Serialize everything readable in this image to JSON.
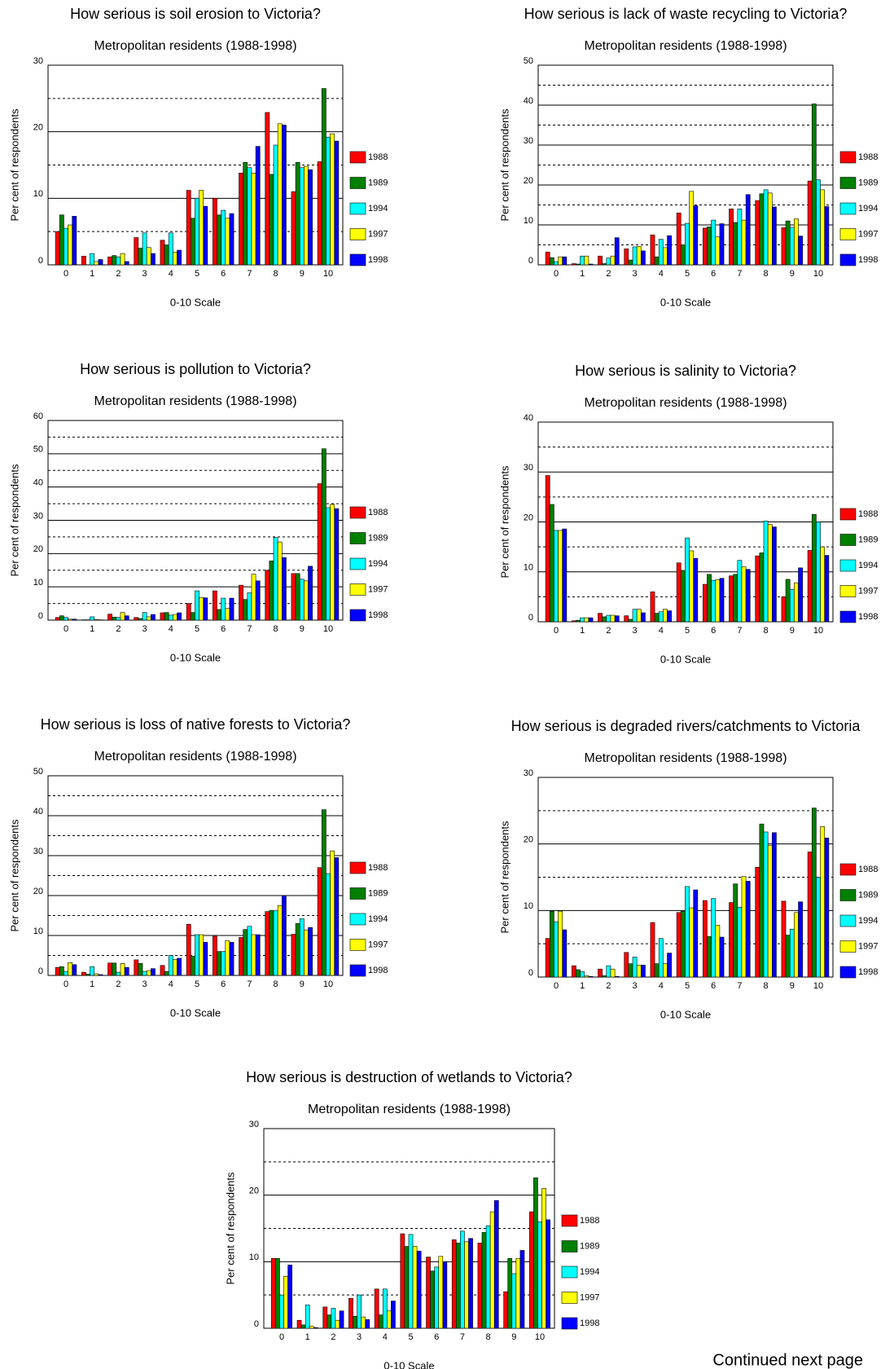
{
  "footer_note": "Continued next page",
  "chart_data": [
    {
      "type": "bar",
      "title": "How serious is soil erosion to Victoria?",
      "subtitle": "Metropolitan residents (1988-1998)",
      "ylabel": "Per cent of respondents",
      "xlabel": "0-10 Scale",
      "categories": [
        "0",
        "1",
        "2",
        "3",
        "4",
        "5",
        "6",
        "7",
        "8",
        "9",
        "10"
      ],
      "series": [
        {
          "name": "1988",
          "color": "#ff0000",
          "values": [
            5,
            1.3,
            1.2,
            4.1,
            3.7,
            11.2,
            10,
            13.8,
            22.9,
            11,
            15.5
          ]
        },
        {
          "name": "1989",
          "color": "#008000",
          "values": [
            7.5,
            0,
            1.4,
            2.5,
            3,
            7,
            7.5,
            15.4,
            13.6,
            15.4,
            26.5
          ]
        },
        {
          "name": "1994",
          "color": "#00ffff",
          "values": [
            5.5,
            1.7,
            1.2,
            4.8,
            4.8,
            10,
            8.2,
            14.6,
            18,
            14.6,
            19.2
          ]
        },
        {
          "name": "1997",
          "color": "#ffff00",
          "values": [
            6,
            0.5,
            1.7,
            2.6,
            1.9,
            11.2,
            7,
            13.8,
            21.2,
            14.8,
            19.7
          ]
        },
        {
          "name": "1998",
          "color": "#0000ff",
          "values": [
            7.3,
            0.8,
            0.5,
            1.7,
            2.2,
            8.8,
            7.7,
            17.8,
            21,
            14.3,
            18.6
          ]
        }
      ],
      "ylim": [
        0,
        30
      ],
      "yticks": [
        0,
        10,
        20,
        30
      ],
      "minor_gridlines": [
        5,
        15,
        25
      ],
      "grid": true,
      "legend": "right"
    },
    {
      "type": "bar",
      "title": "How serious is lack of waste recycling to Victoria?",
      "subtitle": "Metropolitan residents (1988-1998)",
      "ylabel": "Per cent of respondents",
      "xlabel": "0-10 Scale",
      "categories": [
        "0",
        "1",
        "2",
        "3",
        "4",
        "5",
        "6",
        "7",
        "8",
        "9",
        "10"
      ],
      "series": [
        {
          "name": "1988",
          "color": "#ff0000",
          "values": [
            3.2,
            0.3,
            2.2,
            4,
            7.5,
            13,
            9.2,
            14,
            16.1,
            9.3,
            21
          ]
        },
        {
          "name": "1989",
          "color": "#008000",
          "values": [
            1.8,
            0.2,
            0.3,
            1.2,
            2,
            5,
            9.5,
            10.6,
            17.8,
            11,
            40.3
          ]
        },
        {
          "name": "1994",
          "color": "#00ffff",
          "values": [
            0.8,
            2.2,
            1.7,
            4.5,
            6.4,
            10.4,
            11.2,
            14,
            18.8,
            9.4,
            21.3
          ]
        },
        {
          "name": "1997",
          "color": "#ffff00",
          "values": [
            2,
            2.2,
            2.2,
            4.6,
            4.3,
            18.4,
            7,
            11.2,
            18,
            11.5,
            18.8
          ]
        },
        {
          "name": "1998",
          "color": "#0000ff",
          "values": [
            2,
            0.2,
            6.8,
            3.5,
            7.3,
            14.8,
            10.3,
            17.6,
            14.5,
            7.2,
            14.6
          ]
        }
      ],
      "ylim": [
        0,
        50
      ],
      "yticks": [
        0,
        10,
        20,
        30,
        40,
        50
      ],
      "minor_gridlines": [
        5,
        15,
        25,
        35,
        45
      ],
      "grid": true,
      "legend": "right"
    },
    {
      "type": "bar",
      "title": "How serious is pollution to Victoria?",
      "subtitle": "Metropolitan residents (1988-1998)",
      "ylabel": "Per cent of respondents",
      "xlabel": "0-10 Scale",
      "categories": [
        "0",
        "1",
        "2",
        "3",
        "4",
        "5",
        "6",
        "7",
        "8",
        "9",
        "10"
      ],
      "series": [
        {
          "name": "1988",
          "color": "#ff0000",
          "values": [
            0.8,
            0.1,
            1.8,
            0.8,
            2.2,
            5,
            8.8,
            10.5,
            15,
            14,
            41
          ]
        },
        {
          "name": "1989",
          "color": "#008000",
          "values": [
            1.3,
            0.1,
            0.9,
            0.5,
            2.3,
            2.3,
            3.2,
            6.2,
            17.8,
            14,
            51.5
          ]
        },
        {
          "name": "1994",
          "color": "#00ffff",
          "values": [
            0.8,
            1,
            0.8,
            2.3,
            1.5,
            8.8,
            6.6,
            8.2,
            24.8,
            12.3,
            33.8
          ]
        },
        {
          "name": "1997",
          "color": "#ffff00",
          "values": [
            0.3,
            0.2,
            2.3,
            1,
            1.7,
            6.8,
            3.5,
            13.8,
            23.5,
            11.8,
            34.8
          ]
        },
        {
          "name": "1998",
          "color": "#0000ff",
          "values": [
            0.3,
            0.1,
            1.3,
            1.7,
            2.2,
            6.7,
            6.6,
            11.8,
            18.8,
            16.2,
            33.5
          ]
        }
      ],
      "ylim": [
        0,
        60
      ],
      "yticks": [
        0,
        10,
        20,
        30,
        40,
        50,
        60
      ],
      "minor_gridlines": [
        5,
        15,
        25,
        35,
        45,
        55
      ],
      "grid": true,
      "legend": "right"
    },
    {
      "type": "bar",
      "title": "How serious is salinity to Victoria?",
      "subtitle": "Metropolitan residents (1988-1998)",
      "ylabel": "Per cent of respondents",
      "xlabel": "0-10 Scale",
      "categories": [
        "0",
        "1",
        "2",
        "3",
        "4",
        "5",
        "6",
        "7",
        "8",
        "9",
        "10"
      ],
      "series": [
        {
          "name": "1988",
          "color": "#ff0000",
          "values": [
            29.3,
            0.2,
            1.7,
            1.2,
            6,
            11.8,
            7.5,
            9.2,
            13.2,
            5,
            14.3
          ]
        },
        {
          "name": "1989",
          "color": "#008000",
          "values": [
            23.5,
            0.3,
            1,
            0.5,
            1.7,
            10.3,
            9.5,
            9.5,
            13.8,
            8.5,
            21.5
          ]
        },
        {
          "name": "1994",
          "color": "#00ffff",
          "values": [
            18.3,
            0.8,
            1.3,
            2.5,
            2,
            16.8,
            8.3,
            12.3,
            20.2,
            6.5,
            20
          ]
        },
        {
          "name": "1997",
          "color": "#ffff00",
          "values": [
            18.3,
            0.8,
            1.3,
            2.5,
            2.5,
            14.2,
            8.4,
            11,
            19.5,
            7.8,
            15
          ]
        },
        {
          "name": "1998",
          "color": "#0000ff",
          "values": [
            18.6,
            0.8,
            1.2,
            1.8,
            2.2,
            12.7,
            8.7,
            10.5,
            19,
            10.8,
            13.3
          ]
        }
      ],
      "ylim": [
        0,
        40
      ],
      "yticks": [
        0,
        10,
        20,
        30,
        40
      ],
      "minor_gridlines": [
        5,
        15,
        25,
        35
      ],
      "grid": true,
      "legend": "right"
    },
    {
      "type": "bar",
      "title": "How serious is loss of native forests to Victoria?",
      "subtitle": "Metropolitan residents (1988-1998)",
      "ylabel": "Per cent of respondents",
      "xlabel": "0-10 Scale",
      "categories": [
        "0",
        "1",
        "2",
        "3",
        "4",
        "5",
        "6",
        "7",
        "8",
        "9",
        "10"
      ],
      "series": [
        {
          "name": "1988",
          "color": "#ff0000",
          "values": [
            2,
            0.8,
            3.1,
            3.9,
            2.5,
            12.8,
            9.8,
            9.5,
            16,
            10.3,
            27
          ]
        },
        {
          "name": "1989",
          "color": "#008000",
          "values": [
            2.2,
            0.3,
            3.1,
            3,
            1,
            4.8,
            6,
            11.5,
            16.3,
            13,
            41.5
          ]
        },
        {
          "name": "1994",
          "color": "#00ffff",
          "values": [
            1,
            2.2,
            0.8,
            1,
            5,
            10.2,
            6,
            12.3,
            16.2,
            14.2,
            25.5
          ]
        },
        {
          "name": "1997",
          "color": "#ffff00",
          "values": [
            3.2,
            0.4,
            3,
            1.2,
            4,
            10.2,
            8.7,
            10.2,
            17.5,
            11.4,
            31.2
          ]
        },
        {
          "name": "1998",
          "color": "#0000ff",
          "values": [
            2.7,
            0.2,
            2,
            1.7,
            4.3,
            8.3,
            8.3,
            10.2,
            20,
            12,
            29.5
          ]
        }
      ],
      "ylim": [
        0,
        50
      ],
      "yticks": [
        0,
        10,
        20,
        30,
        40,
        50
      ],
      "minor_gridlines": [
        5,
        15,
        25,
        35,
        45
      ],
      "grid": true,
      "legend": "right"
    },
    {
      "type": "bar",
      "title": "How serious is degraded rivers/catchments to Victoria",
      "subtitle": "Metropolitan residents (1988-1998)",
      "ylabel": "Per cent of respondents",
      "xlabel": "0-10 Scale",
      "categories": [
        "0",
        "1",
        "2",
        "3",
        "4",
        "5",
        "6",
        "7",
        "8",
        "9",
        "10"
      ],
      "series": [
        {
          "name": "1988",
          "color": "#ff0000",
          "values": [
            5.8,
            1.7,
            1.2,
            3.7,
            8.2,
            9.7,
            11.5,
            11.2,
            16.5,
            11.4,
            18.8
          ]
        },
        {
          "name": "1989",
          "color": "#008000",
          "values": [
            9.9,
            1.1,
            0.2,
            2,
            2,
            9.9,
            6.1,
            14,
            23,
            6.3,
            25.4
          ]
        },
        {
          "name": "1994",
          "color": "#00ffff",
          "values": [
            8.3,
            0.8,
            1.7,
            3,
            5.8,
            13.6,
            11.8,
            10.5,
            21.8,
            7.2,
            15
          ]
        },
        {
          "name": "1997",
          "color": "#ffff00",
          "values": [
            9.9,
            0.2,
            1.2,
            1.8,
            2,
            10.4,
            7.8,
            15.1,
            19.8,
            9.7,
            22.6
          ]
        },
        {
          "name": "1998",
          "color": "#0000ff",
          "values": [
            7.1,
            0.1,
            0.1,
            1.8,
            3.6,
            13.1,
            6,
            14.4,
            21.7,
            11.3,
            20.9
          ]
        }
      ],
      "ylim": [
        0,
        30
      ],
      "yticks": [
        0,
        10,
        20,
        30
      ],
      "minor_gridlines": [
        5,
        15,
        25
      ],
      "grid": true,
      "legend": "right"
    },
    {
      "type": "bar",
      "title": "How serious is destruction of wetlands to Victoria?",
      "subtitle": "Metropolitan residents (1988-1998)",
      "ylabel": "Per cent of respondents",
      "xlabel": "0-10 Scale",
      "categories": [
        "0",
        "1",
        "2",
        "3",
        "4",
        "5",
        "6",
        "7",
        "8",
        "9",
        "10"
      ],
      "series": [
        {
          "name": "1988",
          "color": "#ff0000",
          "values": [
            10.5,
            1.2,
            3.2,
            4.5,
            5.9,
            14.2,
            10.7,
            13.3,
            12.8,
            5.5,
            17.5
          ]
        },
        {
          "name": "1989",
          "color": "#008000",
          "values": [
            10.5,
            0.5,
            2,
            1.8,
            2,
            12.3,
            8.6,
            12.8,
            14.4,
            10.5,
            22.6
          ]
        },
        {
          "name": "1994",
          "color": "#00ffff",
          "values": [
            5,
            3.5,
            3,
            5,
            5.9,
            14.1,
            9.2,
            14.6,
            15.4,
            8.2,
            16
          ]
        },
        {
          "name": "1997",
          "color": "#ffff00",
          "values": [
            7.8,
            0.3,
            1.2,
            1.7,
            2.6,
            12.3,
            10.8,
            13,
            17.5,
            10.5,
            21
          ]
        },
        {
          "name": "1998",
          "color": "#0000ff",
          "values": [
            9.5,
            0.1,
            2.6,
            1.3,
            4.1,
            11.6,
            10,
            13.5,
            19.2,
            11.7,
            16.3
          ]
        }
      ],
      "ylim": [
        0,
        30
      ],
      "yticks": [
        0,
        10,
        20,
        30
      ],
      "minor_gridlines": [
        5,
        15,
        25
      ],
      "grid": true,
      "legend": "right"
    }
  ]
}
